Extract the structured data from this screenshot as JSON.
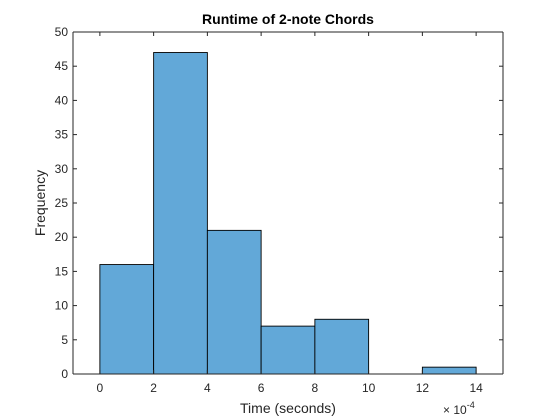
{
  "chart_data": {
    "type": "bar",
    "subtype": "histogram",
    "title": "Runtime of 2-note Chords",
    "xlabel": "Time (seconds)",
    "ylabel": "Frequency",
    "x_exponent_base": "× 10",
    "x_exponent_power": "-4",
    "bin_edges": [
      0,
      2,
      4,
      6,
      8,
      10,
      12,
      14
    ],
    "values": [
      16,
      47,
      21,
      7,
      8,
      0,
      1
    ],
    "xlim": [
      -1,
      15
    ],
    "ylim": [
      0,
      50
    ],
    "xticks": [
      0,
      2,
      4,
      6,
      8,
      10,
      12,
      14
    ],
    "yticks": [
      0,
      5,
      10,
      15,
      20,
      25,
      30,
      35,
      40,
      45,
      50
    ],
    "grid": false,
    "bar_color": "#62a8d8",
    "bar_edge_color": "#000000",
    "axis_color": "#262626"
  }
}
